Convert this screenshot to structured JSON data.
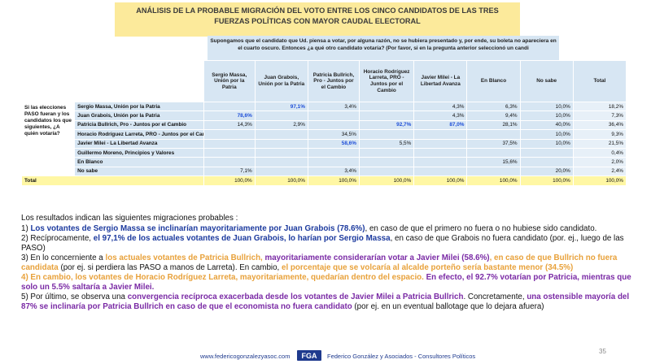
{
  "title": {
    "line1": "ANÁLISIS DE LA PROBABLE MIGRACIÓN DEL VOTO ENTRE LOS CINCO CANDIDATOS DE LAS TRES",
    "line2": "FUERZAS POLÍTICAS CON MAYOR CAUDAL ELECTORAL"
  },
  "question": "Supongamos que el candidato que Ud. piensa a votar, por alguna razón, no se hubiera presentado y, por ende, su boleta no apareciera en el cuarto oscuro. Entonces ¿a qué otro candidato votaría? (Por favor, si en la pregunta anterior seleccionó un candi",
  "stub_label": "Si las elecciones PASO fueran y los candidatos los que siguientes, ¿A quién votaría?",
  "columns": [
    "Sergio Massa, Unión por la Patria",
    "Juan Grabois, Unión por la Patria",
    "Patricia Bullrich, Pro - Juntos por el Cambio",
    "Horacio Rodríguez Larreta, PRO - Juntos por el Cambio",
    "Javier Milei - La Libertad Avanza",
    "En Blanco",
    "No sabe",
    "Total"
  ],
  "rows": [
    {
      "label": "Sergio Massa, Unión por la Patria",
      "cells": [
        "",
        "97,1%",
        "3,4%",
        "",
        "4,3%",
        "6,3%",
        "10,0%",
        "18,2%"
      ],
      "hl": [
        1
      ]
    },
    {
      "label": "Juan Grabois, Unión por la Patria",
      "cells": [
        "78,6%",
        "",
        "",
        "",
        "4,3%",
        "9,4%",
        "10,0%",
        "7,3%"
      ],
      "hl": [
        0
      ]
    },
    {
      "label": "Patricia Bullrich, Pro - Juntos por el Cambio",
      "cells": [
        "14,3%",
        "2,9%",
        "",
        "92,7%",
        "87,0%",
        "28,1%",
        "40,0%",
        "36,4%"
      ],
      "hl": [
        3,
        4
      ]
    },
    {
      "label": "Horacio Rodríguez Larreta, PRO - Juntos por el Cambio",
      "cells": [
        "",
        "",
        "34,5%",
        "",
        "",
        "",
        "10,0%",
        "9,3%"
      ],
      "hl": []
    },
    {
      "label": "Javier Milei - La Libertad Avanza",
      "cells": [
        "",
        "",
        "58,6%",
        "5,5%",
        "",
        "37,5%",
        "10,0%",
        "21,5%"
      ],
      "hl": [
        2
      ]
    },
    {
      "label": "Guillermo Moreno, Principios y Valores",
      "cells": [
        "",
        "",
        "",
        "",
        "",
        "",
        "",
        "0,4%"
      ],
      "hl": []
    },
    {
      "label": "En Blanco",
      "cells": [
        "",
        "",
        "",
        "",
        "",
        "15,6%",
        "",
        "2,0%"
      ],
      "hl": []
    },
    {
      "label": "No sabe",
      "cells": [
        "7,1%",
        "",
        "3,4%",
        "",
        "",
        "",
        "20,0%",
        "2,4%"
      ],
      "hl": []
    }
  ],
  "total": {
    "label": "Total",
    "cells": [
      "100,0%",
      "100,0%",
      "100,0%",
      "100,0%",
      "100,0%",
      "100,0%",
      "100,0%",
      "100,0%"
    ]
  },
  "text": {
    "intro": "Los resultados indican las siguientes migraciones probables :",
    "p1_a": "1) ",
    "p1_b": "Los votantes de Sergio Massa se inclinarían mayoritariamente por Juan Grabois (78.6%)",
    "p1_c": ", en caso de que el primero no fuera o no hubiese sido candidato.",
    "p2_a": "2) Recíprocamente, ",
    "p2_b": "el 97,1% de los actuales votantes de Juan Grabois, lo harían por Sergio Massa",
    "p2_c": ", en caso de que Grabois no fuera candidato (por. ej., luego de las PASO)",
    "p3_a": "3) En lo concerniente a ",
    "p3_b": "los actuales votantes de Patricia Bullrich, ",
    "p3_c": "mayoritariamente considerarían votar a Javier Milei (58.6%)",
    "p3_d": ", en caso de que Bullrich no fuera candidata",
    "p3_e": " (por ej. si perdiera las PASO a manos de Larreta). En cambio, ",
    "p3_f": "el porcentaje que se volcaría al alcalde porteño sería bastante menor (34.5%)",
    "p4_a": "4) En cambio, ",
    "p4_b": "los votantes de Horacio Rodríguez Larreta, mayoritariamente, quedarían dentro del espacio.",
    "p4_c": " En efecto, el 92.7% votarían por Patricia, mientras que solo un 5.5% saltaría a Javier Milei.",
    "p5_a": "5)  Por último, se observa una ",
    "p5_b": "convergencia recíproca exacerbada desde los votantes de Javier Milei a Patricia Bullrich",
    "p5_c": ". Concretamente, ",
    "p5_d": "una ostensible mayoría del 87% se inclinaría por Patricia Bullrich en caso de que el economista no fuera candidato",
    "p5_e": " (por ej. en un eventual ballotage que lo dejara afuera)"
  },
  "footer": {
    "url": "www.federicogonzalezyasoc.com",
    "logo": "FGA",
    "brand": "Federico González y Asociados - Consultores Políticos"
  },
  "page_number": "35",
  "colors": {
    "title_bg": "#fcea9b",
    "cell_bg": "#d7e6f3",
    "total_bg": "#fff7a4",
    "highlight": "#1f4fd8"
  }
}
